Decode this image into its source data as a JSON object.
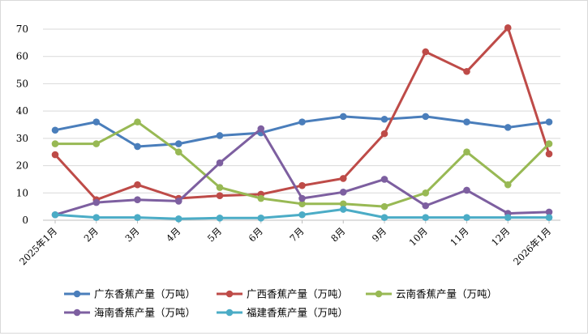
{
  "chart_data": {
    "type": "line",
    "title": "",
    "xlabel": "",
    "ylabel": "",
    "ylim": [
      0,
      70
    ],
    "yticks": [
      0,
      10,
      20,
      30,
      40,
      50,
      60,
      70
    ],
    "grid": true,
    "legend_position": "bottom",
    "categories": [
      "2025年1月",
      "2月",
      "3月",
      "4月",
      "5月",
      "6月",
      "7月",
      "8月",
      "9月",
      "10月",
      "11月",
      "12月",
      "2026年1月"
    ],
    "series": [
      {
        "name": "广东香蕉产量（万吨）",
        "color": "#4a7ebb",
        "values": [
          33,
          36,
          27,
          28,
          31,
          32,
          36,
          38,
          37,
          38,
          36,
          34,
          36
        ]
      },
      {
        "name": "广西香蕉产量（万吨）",
        "color": "#be4b48",
        "values": [
          24,
          7.5,
          13,
          8,
          9,
          9.5,
          12.7,
          15.3,
          31.7,
          61.7,
          54.5,
          70.5,
          24.3
        ]
      },
      {
        "name": "云南香蕉产量（万吨）",
        "color": "#98b954",
        "values": [
          28,
          28,
          36,
          25,
          12,
          8,
          6,
          6,
          5,
          10,
          25,
          13,
          28
        ]
      },
      {
        "name": "海南香蕉产量（万吨）",
        "color": "#7d5fa0",
        "values": [
          2,
          6.5,
          7.5,
          7,
          21,
          33.5,
          8,
          10.3,
          15,
          5.3,
          11,
          2.5,
          3
        ]
      },
      {
        "name": "福建香蕉产量（万吨）",
        "color": "#4bacc6",
        "values": [
          2,
          1,
          1,
          0.5,
          0.8,
          0.8,
          2,
          4,
          1,
          1,
          1,
          1,
          1
        ]
      }
    ]
  }
}
